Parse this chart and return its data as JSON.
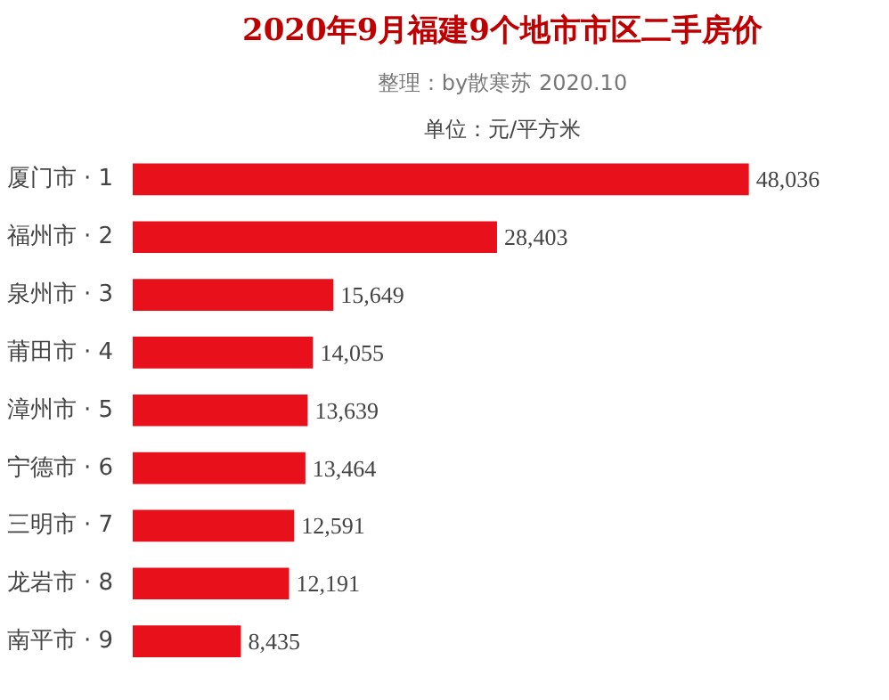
{
  "chart_data": {
    "type": "bar",
    "orientation": "horizontal",
    "title": "2020年9月福建9个地市市区二手房价",
    "subtitle": "整理：by散寒苏 2020.10",
    "annotations": [
      "单位：元/平方米"
    ],
    "categories": [
      "厦门市 · 1",
      "福州市 · 2",
      "泉州市 · 3",
      "莆田市 · 4",
      "漳州市 · 5",
      "宁德市 · 6",
      "三明市 · 7",
      "龙岩市 · 8",
      "南平市 · 9"
    ],
    "values": [
      48036,
      28403,
      15649,
      14055,
      13639,
      13464,
      12591,
      12191,
      8435
    ],
    "value_labels": [
      "48,036",
      "28,403",
      "15,649",
      "14,055",
      "13,639",
      "13,464",
      "12,591",
      "12,191",
      "8,435"
    ],
    "color": "#e8101a",
    "grid": false
  }
}
